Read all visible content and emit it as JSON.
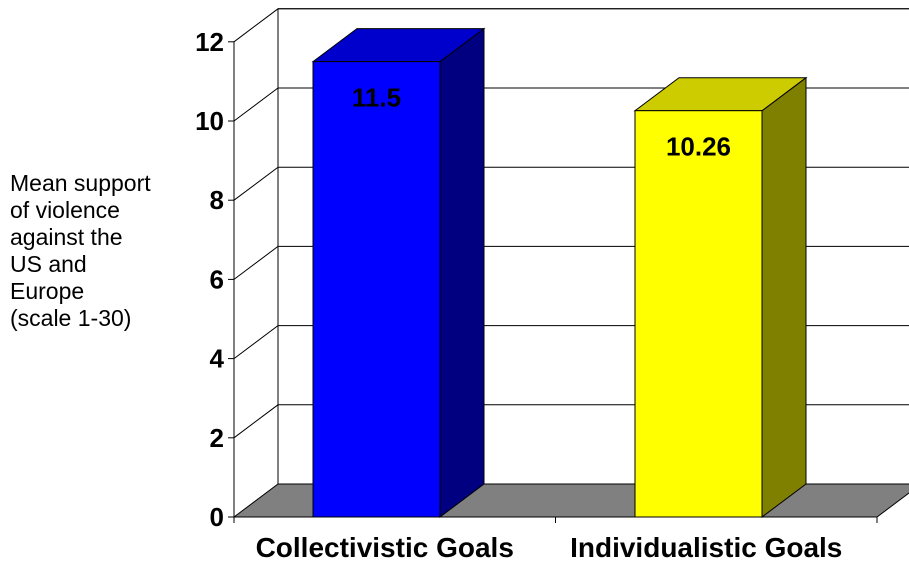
{
  "chart_data": {
    "type": "bar",
    "title": "",
    "xlabel": "",
    "ylabel": "Mean support of violence against the US and Europe (scale 1-30)",
    "ylabel_lines": [
      "Mean support",
      "of violence",
      "against the",
      "US and",
      "Europe",
      "(scale 1-30)"
    ],
    "categories": [
      "Collectivistic Goals",
      "Individualistic Goals"
    ],
    "values": [
      11.5,
      10.26
    ],
    "data_labels": [
      "11.5",
      "10.26"
    ],
    "ylim": [
      0,
      12
    ],
    "yticks": [
      0,
      2,
      4,
      6,
      8,
      10,
      12
    ],
    "grid": true,
    "style": "3d",
    "colors": {
      "bar1_front": "#0000ff",
      "bar1_top": "#0000cc",
      "bar1_side": "#000080",
      "bar2_front": "#ffff00",
      "bar2_top": "#cccc00",
      "bar2_side": "#808000",
      "floor": "#808080"
    }
  }
}
